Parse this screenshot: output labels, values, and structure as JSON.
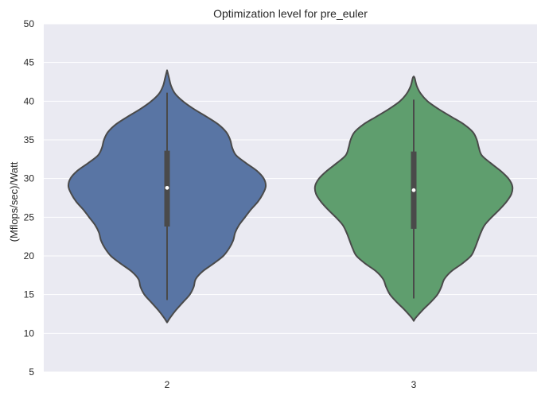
{
  "chart_data": {
    "type": "violin",
    "title": "Optimization level for pre_euler",
    "xlabel": "",
    "ylabel": "(Mflops/sec)/Watt",
    "ylim": [
      5,
      50
    ],
    "yticks": [
      5,
      10,
      15,
      20,
      25,
      30,
      35,
      40,
      45,
      50
    ],
    "categories": [
      "2",
      "3"
    ],
    "grid": true,
    "colors": {
      "background": "#eaeaf2",
      "grid": "#ffffff",
      "outline": "#4a4a4a",
      "median_dot": "#ffffff"
    },
    "violins": [
      {
        "category": "2",
        "color": "#5975a4",
        "min": 14.3,
        "q1": 23.8,
        "median": 28.8,
        "q3": 33.6,
        "max": 41.1,
        "kde_extent": [
          11.4,
          44.0
        ],
        "density_profile": [
          [
            11.4,
            0.0
          ],
          [
            12.0,
            0.03
          ],
          [
            13.0,
            0.09
          ],
          [
            14.0,
            0.16
          ],
          [
            15.0,
            0.23
          ],
          [
            16.0,
            0.27
          ],
          [
            17.0,
            0.29
          ],
          [
            18.0,
            0.36
          ],
          [
            19.0,
            0.47
          ],
          [
            20.0,
            0.57
          ],
          [
            21.0,
            0.63
          ],
          [
            22.0,
            0.67
          ],
          [
            23.0,
            0.69
          ],
          [
            24.0,
            0.73
          ],
          [
            25.0,
            0.79
          ],
          [
            26.0,
            0.85
          ],
          [
            27.0,
            0.92
          ],
          [
            28.0,
            0.97
          ],
          [
            29.0,
            1.0
          ],
          [
            30.0,
            0.98
          ],
          [
            31.0,
            0.91
          ],
          [
            32.0,
            0.8
          ],
          [
            33.0,
            0.7
          ],
          [
            34.0,
            0.66
          ],
          [
            35.0,
            0.64
          ],
          [
            36.0,
            0.6
          ],
          [
            37.0,
            0.52
          ],
          [
            38.0,
            0.4
          ],
          [
            39.0,
            0.27
          ],
          [
            40.0,
            0.16
          ],
          [
            41.0,
            0.08
          ],
          [
            42.0,
            0.04
          ],
          [
            43.0,
            0.02
          ],
          [
            44.0,
            0.0
          ]
        ]
      },
      {
        "category": "3",
        "color": "#5f9e6e",
        "min": 14.5,
        "q1": 23.5,
        "median": 28.5,
        "q3": 33.5,
        "max": 40.2,
        "kde_extent": [
          11.6,
          43.2
        ],
        "density_profile": [
          [
            11.6,
            0.0
          ],
          [
            12.0,
            0.02
          ],
          [
            13.0,
            0.09
          ],
          [
            14.0,
            0.17
          ],
          [
            15.0,
            0.24
          ],
          [
            16.0,
            0.28
          ],
          [
            17.0,
            0.31
          ],
          [
            18.0,
            0.38
          ],
          [
            19.0,
            0.49
          ],
          [
            20.0,
            0.58
          ],
          [
            21.0,
            0.62
          ],
          [
            22.0,
            0.65
          ],
          [
            23.0,
            0.68
          ],
          [
            24.0,
            0.72
          ],
          [
            25.0,
            0.79
          ],
          [
            26.0,
            0.87
          ],
          [
            27.0,
            0.94
          ],
          [
            28.0,
            0.99
          ],
          [
            29.0,
            1.0
          ],
          [
            30.0,
            0.96
          ],
          [
            31.0,
            0.88
          ],
          [
            32.0,
            0.78
          ],
          [
            33.0,
            0.69
          ],
          [
            34.0,
            0.66
          ],
          [
            35.0,
            0.64
          ],
          [
            36.0,
            0.6
          ],
          [
            37.0,
            0.51
          ],
          [
            38.0,
            0.38
          ],
          [
            39.0,
            0.25
          ],
          [
            40.0,
            0.14
          ],
          [
            41.0,
            0.07
          ],
          [
            42.0,
            0.03
          ],
          [
            43.0,
            0.01
          ],
          [
            43.2,
            0.0
          ]
        ]
      }
    ]
  }
}
